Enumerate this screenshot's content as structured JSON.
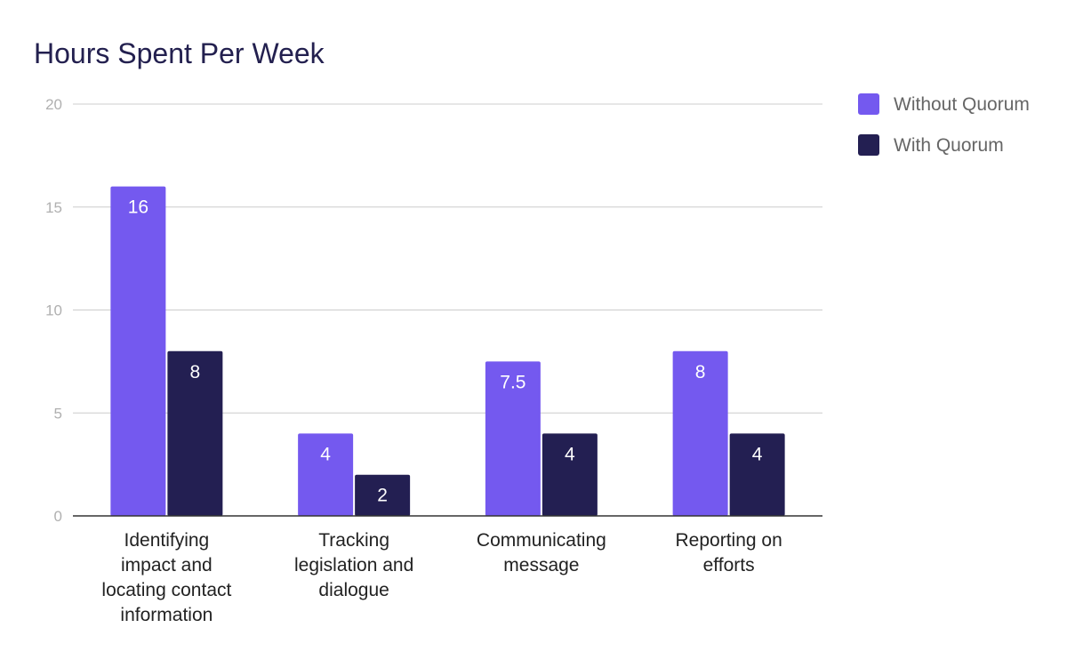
{
  "chart_data": {
    "type": "bar",
    "title": "Hours Spent Per Week",
    "categories": [
      [
        "Identifying",
        "impact and",
        "locating contact",
        "information"
      ],
      [
        "Tracking",
        "legislation and",
        "dialogue"
      ],
      [
        "Communicating",
        "message"
      ],
      [
        "Reporting on",
        "efforts"
      ]
    ],
    "series": [
      {
        "name": "Without Quorum",
        "color": "#7459ef",
        "values": [
          16,
          4,
          7.5,
          8
        ],
        "labels": [
          "16",
          "4",
          "7.5",
          "8"
        ]
      },
      {
        "name": "With Quorum",
        "color": "#231f52",
        "values": [
          8,
          2,
          4,
          4
        ],
        "labels": [
          "8",
          "2",
          "4",
          "4"
        ]
      }
    ],
    "ylim": [
      0,
      20
    ],
    "yticks": [
      "0",
      "5",
      "10",
      "15",
      "20"
    ],
    "grid": true,
    "legend": "right",
    "xlabel": "",
    "ylabel": ""
  }
}
